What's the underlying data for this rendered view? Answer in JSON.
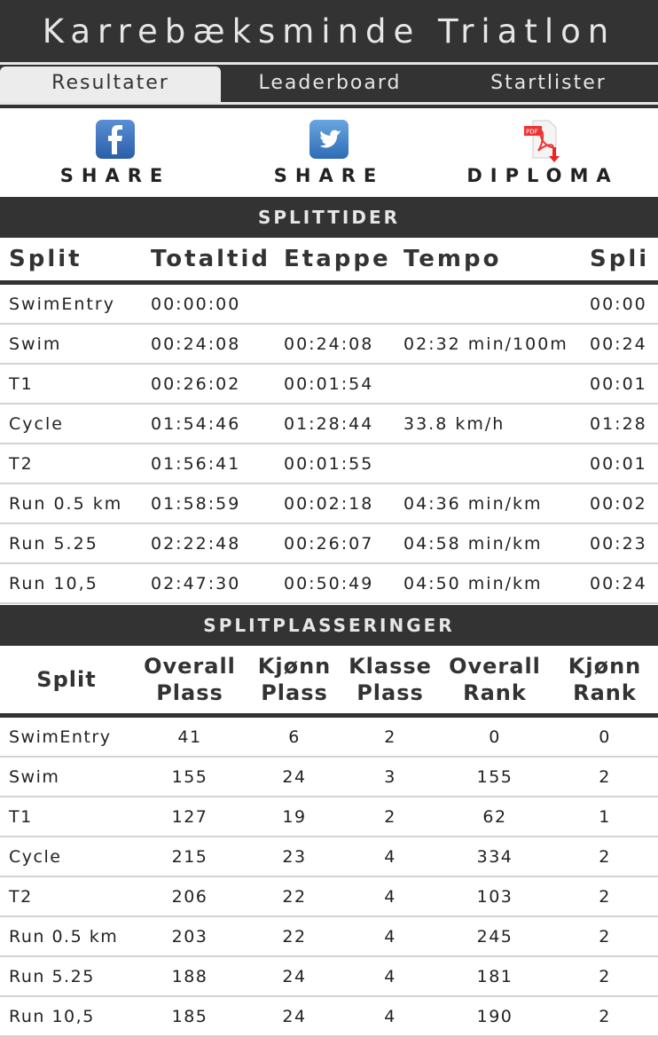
{
  "header": {
    "title": "Karrebæksminde Triatlon"
  },
  "tabs": [
    {
      "label": "Resultater",
      "active": true
    },
    {
      "label": "Leaderboard",
      "active": false
    },
    {
      "label": "Startlister",
      "active": false
    }
  ],
  "share": [
    {
      "icon": "facebook-icon",
      "label": "SHARE"
    },
    {
      "icon": "twitter-icon",
      "label": "SHARE"
    },
    {
      "icon": "pdf-icon",
      "label": "DIPLOMA"
    }
  ],
  "splittider": {
    "title": "SPLITTIDER",
    "columns": [
      "Split",
      "Totaltid",
      "Etappe",
      "Tempo",
      "Spli"
    ],
    "rows": [
      [
        "SwimEntry",
        "00:00:00",
        "",
        "",
        "00:00"
      ],
      [
        "Swim",
        "00:24:08",
        "00:24:08",
        "02:32 min/100m",
        "00:24"
      ],
      [
        "T1",
        "00:26:02",
        "00:01:54",
        "",
        "00:01"
      ],
      [
        "Cycle",
        "01:54:46",
        "01:28:44",
        "33.8 km/h",
        "01:28"
      ],
      [
        "T2",
        "01:56:41",
        "00:01:55",
        "",
        "00:01"
      ],
      [
        "Run 0.5 km",
        "01:58:59",
        "00:02:18",
        "04:36 min/km",
        "00:02"
      ],
      [
        "Run 5.25",
        "02:22:48",
        "00:26:07",
        "04:58 min/km",
        "00:23"
      ],
      [
        "Run 10,5",
        "02:47:30",
        "00:50:49",
        "04:50 min/km",
        "00:24"
      ]
    ]
  },
  "splitplasseringer": {
    "title": "SPLITPLASSERINGER",
    "columns": [
      "Split",
      "Overall\nPlass",
      "Kjønn\nPlass",
      "Klasse\nPlass",
      "Overall\nRank",
      "Kjønn\nRank"
    ],
    "rows": [
      [
        "SwimEntry",
        "41",
        "6",
        "2",
        "0",
        "0"
      ],
      [
        "Swim",
        "155",
        "24",
        "3",
        "155",
        "2"
      ],
      [
        "T1",
        "127",
        "19",
        "2",
        "62",
        "1"
      ],
      [
        "Cycle",
        "215",
        "23",
        "4",
        "334",
        "2"
      ],
      [
        "T2",
        "206",
        "22",
        "4",
        "103",
        "2"
      ],
      [
        "Run 0.5 km",
        "203",
        "22",
        "4",
        "245",
        "2"
      ],
      [
        "Run 5.25",
        "188",
        "24",
        "4",
        "181",
        "2"
      ],
      [
        "Run 10,5",
        "185",
        "24",
        "4",
        "190",
        "2"
      ]
    ]
  }
}
